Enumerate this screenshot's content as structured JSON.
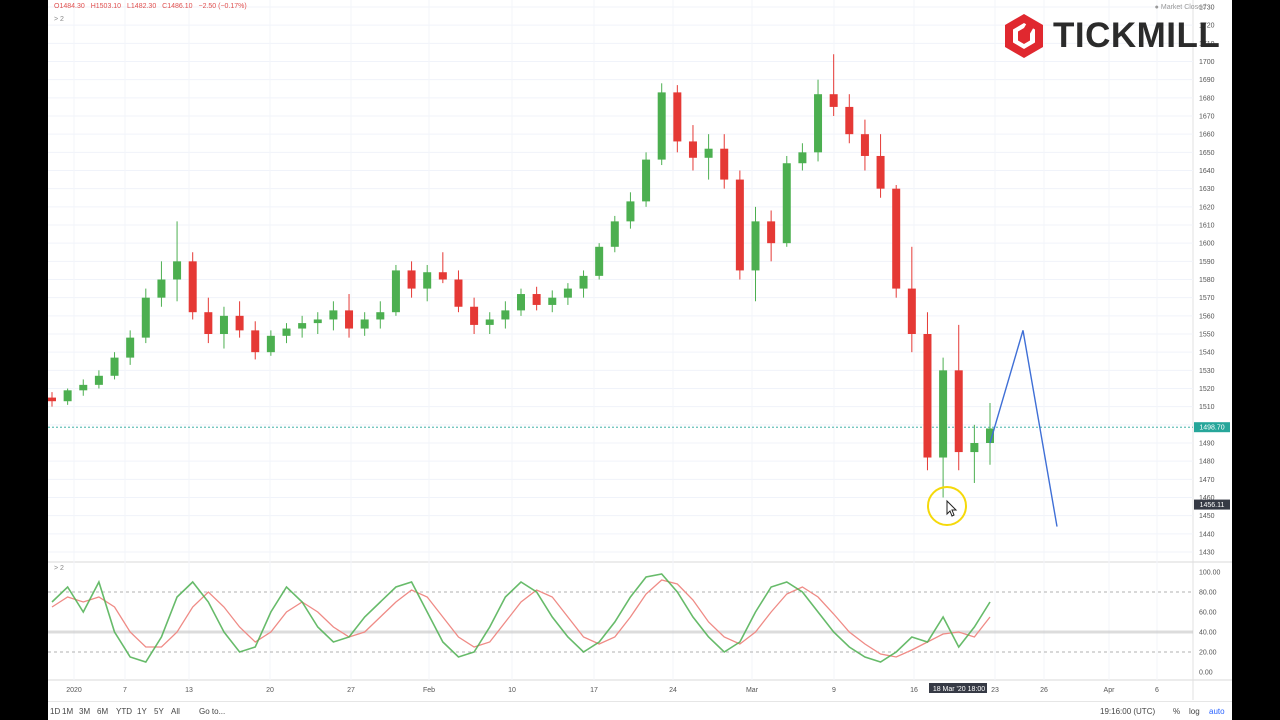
{
  "ohlc": {
    "open": "O1484.30",
    "high": "H1503.10",
    "low": "L1482.30",
    "close": "C1486.10",
    "change": "−2.50 (−0.17%)"
  },
  "pane_label": "2",
  "osc_pane_label": "2",
  "market_status": "Market Closed",
  "logo": {
    "text": "TICKMILL"
  },
  "bottom": {
    "ranges": [
      "1D",
      "1M",
      "3M",
      "6M",
      "YTD",
      "1Y",
      "5Y",
      "All"
    ],
    "goto": "Go to...",
    "clock": "19:16:00 (UTC)",
    "pct": "%",
    "log": "log",
    "auto": "auto"
  },
  "colors": {
    "up": "#26a69a",
    "down": "#ef5350",
    "candle_up": "#4caf50",
    "candle_down": "#e53935",
    "projection": "#3f6fd6",
    "stoch_k": "#4caf50",
    "stoch_d": "#ef8b86",
    "price_tag": "#26a69a",
    "highlight": "#f5d90a"
  },
  "chart_data": [
    {
      "type": "candlestick",
      "symbol": "XAUUSD",
      "ylim": [
        1430,
        1730
      ],
      "y_ticks": [
        1430,
        1440,
        1450,
        1460,
        1470,
        1480,
        1490,
        1500,
        1510,
        1520,
        1530,
        1540,
        1550,
        1560,
        1570,
        1580,
        1590,
        1600,
        1610,
        1620,
        1630,
        1640,
        1650,
        1660,
        1670,
        1680,
        1690,
        1700,
        1710,
        1720,
        1730
      ],
      "x_labels": [
        "2020",
        "7",
        "13",
        "20",
        "27",
        "Feb",
        "10",
        "17",
        "24",
        "Mar",
        "9",
        "16",
        "18 Mar '20 18:00",
        "23",
        "26",
        "Apr",
        "6"
      ],
      "current_price_label": "1498.70",
      "current_price": 1498.7,
      "crosshair_price_label": "1456.11",
      "crosshair_price": 1456.11,
      "series": [
        {
          "values": [
            [
              1515,
              1518,
              1510,
              1513
            ],
            [
              1513,
              1520,
              1511,
              1519
            ],
            [
              1519,
              1525,
              1516,
              1522
            ],
            [
              1522,
              1530,
              1520,
              1527
            ],
            [
              1527,
              1540,
              1525,
              1537
            ],
            [
              1537,
              1552,
              1533,
              1548
            ],
            [
              1548,
              1575,
              1545,
              1570
            ],
            [
              1570,
              1590,
              1565,
              1580
            ],
            [
              1580,
              1612,
              1568,
              1590
            ],
            [
              1590,
              1595,
              1558,
              1562
            ],
            [
              1562,
              1570,
              1545,
              1550
            ],
            [
              1550,
              1565,
              1542,
              1560
            ],
            [
              1560,
              1568,
              1548,
              1552
            ],
            [
              1552,
              1557,
              1536,
              1540
            ],
            [
              1540,
              1552,
              1538,
              1549
            ],
            [
              1549,
              1556,
              1545,
              1553
            ],
            [
              1553,
              1560,
              1548,
              1556
            ],
            [
              1556,
              1562,
              1550,
              1558
            ],
            [
              1558,
              1568,
              1552,
              1563
            ],
            [
              1563,
              1572,
              1548,
              1553
            ],
            [
              1553,
              1562,
              1549,
              1558
            ],
            [
              1558,
              1568,
              1553,
              1562
            ],
            [
              1562,
              1588,
              1560,
              1585
            ],
            [
              1585,
              1590,
              1570,
              1575
            ],
            [
              1575,
              1588,
              1568,
              1584
            ],
            [
              1584,
              1595,
              1578,
              1580
            ],
            [
              1580,
              1585,
              1562,
              1565
            ],
            [
              1565,
              1570,
              1550,
              1555
            ],
            [
              1555,
              1562,
              1550,
              1558
            ],
            [
              1558,
              1568,
              1553,
              1563
            ],
            [
              1563,
              1575,
              1560,
              1572
            ],
            [
              1572,
              1576,
              1563,
              1566
            ],
            [
              1566,
              1574,
              1562,
              1570
            ],
            [
              1570,
              1578,
              1566,
              1575
            ],
            [
              1575,
              1585,
              1570,
              1582
            ],
            [
              1582,
              1600,
              1580,
              1598
            ],
            [
              1598,
              1615,
              1595,
              1612
            ],
            [
              1612,
              1628,
              1608,
              1623
            ],
            [
              1623,
              1650,
              1620,
              1646
            ],
            [
              1646,
              1688,
              1643,
              1683
            ],
            [
              1683,
              1687,
              1650,
              1656
            ],
            [
              1656,
              1665,
              1640,
              1647
            ],
            [
              1647,
              1660,
              1635,
              1652
            ],
            [
              1652,
              1660,
              1630,
              1635
            ],
            [
              1635,
              1640,
              1580,
              1585
            ],
            [
              1585,
              1620,
              1568,
              1612
            ],
            [
              1612,
              1618,
              1590,
              1600
            ],
            [
              1600,
              1648,
              1598,
              1644
            ],
            [
              1644,
              1655,
              1640,
              1650
            ],
            [
              1650,
              1690,
              1645,
              1682
            ],
            [
              1682,
              1704,
              1670,
              1675
            ],
            [
              1675,
              1682,
              1655,
              1660
            ],
            [
              1660,
              1668,
              1640,
              1648
            ],
            [
              1648,
              1660,
              1625,
              1630
            ],
            [
              1630,
              1632,
              1570,
              1575
            ],
            [
              1575,
              1598,
              1540,
              1550
            ],
            [
              1550,
              1562,
              1475,
              1482
            ],
            [
              1482,
              1537,
              1460,
              1530
            ],
            [
              1530,
              1555,
              1475,
              1485
            ],
            [
              1485,
              1500,
              1468,
              1490
            ],
            [
              1490,
              1512,
              1478,
              1498
            ]
          ]
        }
      ]
    },
    {
      "type": "line",
      "indicator": "stochastic",
      "ylim": [
        0,
        100
      ],
      "y_ticks": [
        0,
        20,
        40,
        60,
        80,
        100
      ],
      "levels": [
        20,
        80
      ],
      "series": [
        {
          "values": [
            70,
            85,
            60,
            90,
            40,
            15,
            10,
            35,
            75,
            90,
            70,
            40,
            20,
            25,
            60,
            85,
            70,
            45,
            30,
            35,
            55,
            70,
            85,
            90,
            60,
            30,
            15,
            20,
            45,
            75,
            90,
            80,
            55,
            35,
            20,
            30,
            50,
            75,
            95,
            98,
            80,
            55,
            35,
            20,
            30,
            60,
            85,
            90,
            80,
            60,
            40,
            25,
            15,
            10,
            20,
            35,
            30,
            55,
            25,
            45,
            70
          ]
        },
        {
          "values": [
            65,
            75,
            70,
            75,
            65,
            40,
            25,
            25,
            40,
            65,
            80,
            65,
            45,
            30,
            40,
            60,
            70,
            60,
            45,
            35,
            40,
            55,
            70,
            82,
            75,
            55,
            35,
            25,
            30,
            50,
            70,
            82,
            75,
            55,
            35,
            28,
            35,
            55,
            78,
            92,
            88,
            72,
            50,
            35,
            28,
            40,
            60,
            78,
            85,
            75,
            58,
            40,
            28,
            18,
            15,
            22,
            30,
            38,
            40,
            35,
            55
          ]
        }
      ]
    }
  ]
}
